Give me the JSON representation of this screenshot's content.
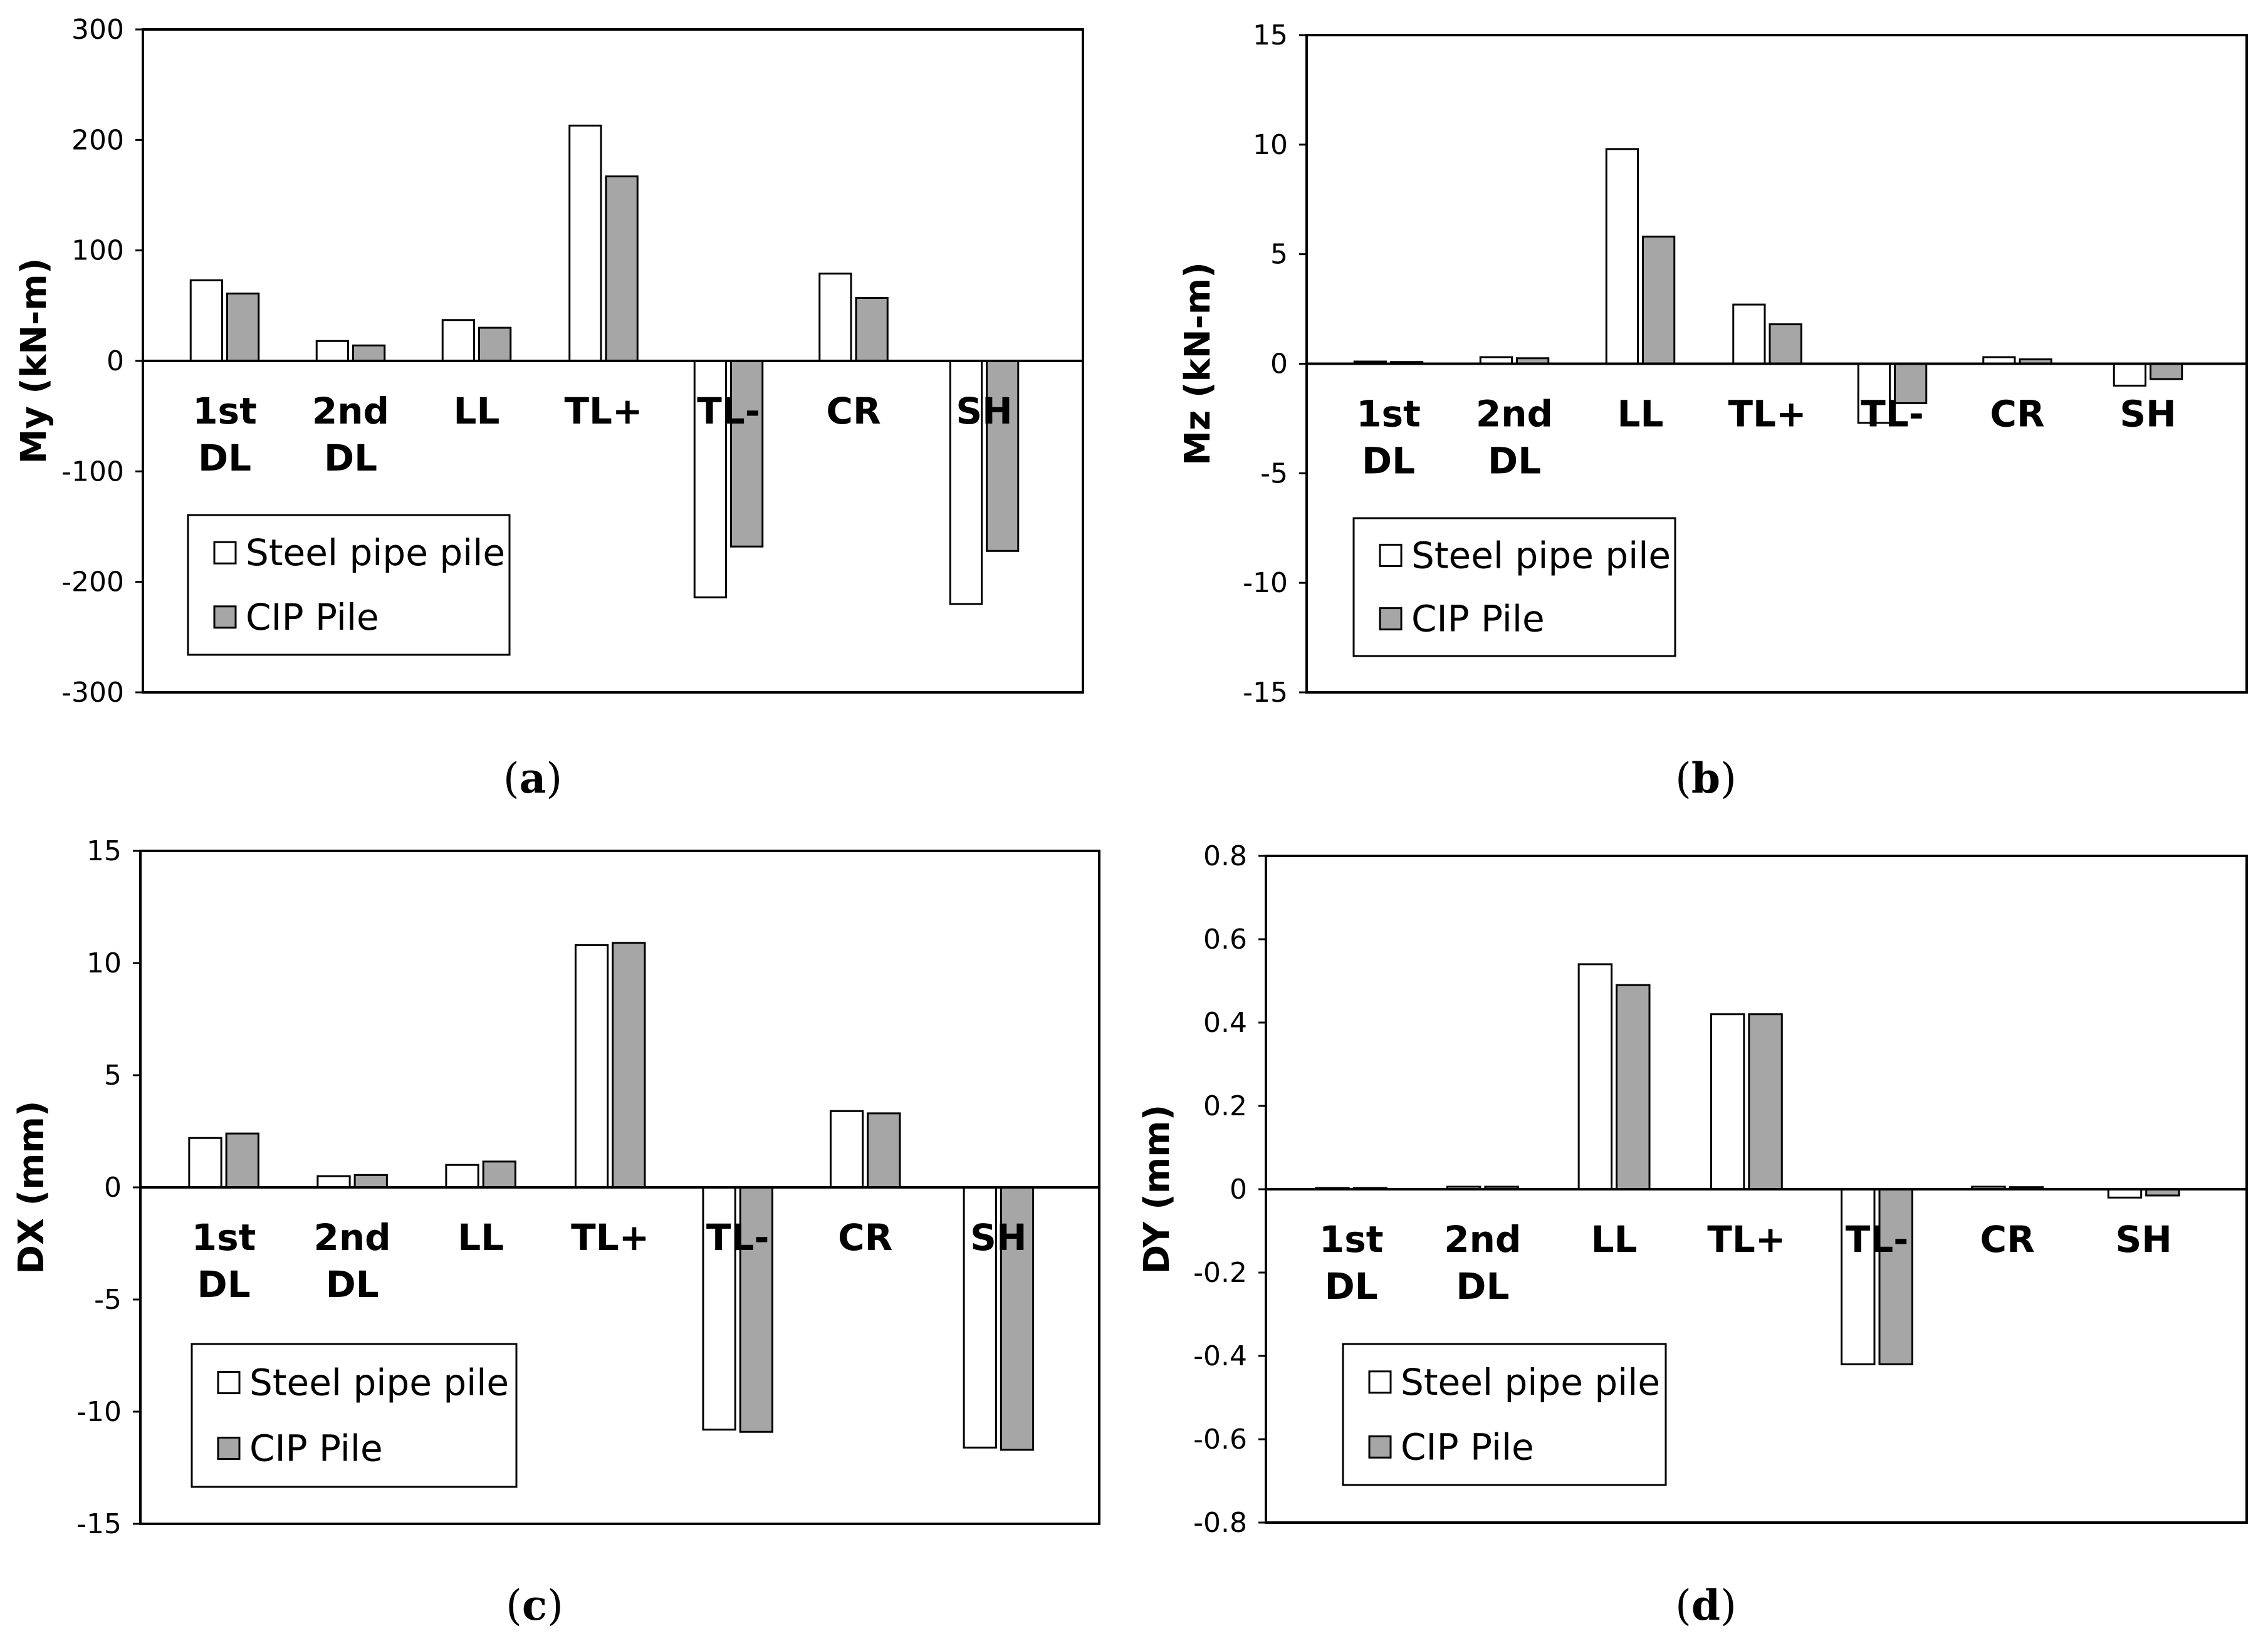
{
  "legend": {
    "series_1": "Steel pipe pile",
    "series_2": "CIP Pile"
  },
  "colors": {
    "series_1": "#ffffff",
    "series_2": "#a6a6a6",
    "stroke": "#000000"
  },
  "chart_data": [
    {
      "type": "bar",
      "caption": {
        "open": "(",
        "letter": "a",
        "close": ")"
      },
      "ylabel": "My (kN-m)",
      "xlabel": "",
      "ylim": [
        -300,
        300
      ],
      "yticks": [
        "300",
        "200",
        "100",
        "0",
        "-100",
        "-200",
        "-300"
      ],
      "ytick_values": [
        300,
        200,
        100,
        0,
        -100,
        -200,
        -300
      ],
      "categories": [
        {
          "line1": "1st",
          "line2": "DL"
        },
        {
          "line1": "2nd",
          "line2": "DL"
        },
        {
          "line1": "LL",
          "line2": ""
        },
        {
          "line1": "TL+",
          "line2": ""
        },
        {
          "line1": "TL-",
          "line2": ""
        },
        {
          "line1": "CR",
          "line2": ""
        },
        {
          "line1": "SH",
          "line2": ""
        }
      ],
      "series": [
        {
          "name": "Steel pipe pile",
          "values": [
            73,
            18,
            37,
            213,
            -214,
            79,
            -220
          ]
        },
        {
          "name": "CIP Pile",
          "values": [
            61,
            14,
            30,
            167,
            -168,
            57,
            -172
          ]
        }
      ]
    },
    {
      "type": "bar",
      "caption": {
        "open": "(",
        "letter": "b",
        "close": ")"
      },
      "ylabel": "Mz (kN-m)",
      "xlabel": "",
      "ylim": [
        -15,
        15
      ],
      "yticks": [
        "15",
        "10",
        "5",
        "0",
        "-5",
        "-10",
        "-15"
      ],
      "ytick_values": [
        15,
        10,
        5,
        0,
        -5,
        -10,
        -15
      ],
      "categories": [
        {
          "line1": "1st",
          "line2": "DL"
        },
        {
          "line1": "2nd",
          "line2": "DL"
        },
        {
          "line1": "LL",
          "line2": ""
        },
        {
          "line1": "TL+",
          "line2": ""
        },
        {
          "line1": "TL-",
          "line2": ""
        },
        {
          "line1": "CR",
          "line2": ""
        },
        {
          "line1": "SH",
          "line2": ""
        }
      ],
      "series": [
        {
          "name": "Steel pipe pile",
          "values": [
            0.1,
            0.3,
            9.8,
            2.7,
            -2.7,
            0.3,
            -1.0
          ]
        },
        {
          "name": "CIP Pile",
          "values": [
            0.08,
            0.25,
            5.8,
            1.8,
            -1.8,
            0.2,
            -0.7
          ]
        }
      ]
    },
    {
      "type": "bar",
      "caption": {
        "open": "(",
        "letter": "c",
        "close": ")"
      },
      "ylabel": "DX (mm)",
      "xlabel": "",
      "ylim": [
        -15,
        15
      ],
      "yticks": [
        "15",
        "10",
        "5",
        "0",
        "-5",
        "-10",
        "-15"
      ],
      "ytick_values": [
        15,
        10,
        5,
        0,
        -5,
        -10,
        -15
      ],
      "categories": [
        {
          "line1": "1st",
          "line2": "DL"
        },
        {
          "line1": "2nd",
          "line2": "DL"
        },
        {
          "line1": "LL",
          "line2": ""
        },
        {
          "line1": "TL+",
          "line2": ""
        },
        {
          "line1": "TL-",
          "line2": ""
        },
        {
          "line1": "CR",
          "line2": ""
        },
        {
          "line1": "SH",
          "line2": ""
        }
      ],
      "series": [
        {
          "name": "Steel pipe pile",
          "values": [
            2.2,
            0.5,
            1.0,
            10.8,
            -10.8,
            3.4,
            -11.6
          ]
        },
        {
          "name": "CIP Pile",
          "values": [
            2.4,
            0.55,
            1.15,
            10.9,
            -10.9,
            3.3,
            -11.7
          ]
        }
      ]
    },
    {
      "type": "bar",
      "caption": {
        "open": "(",
        "letter": "d",
        "close": ")"
      },
      "ylabel": "DY (mm)",
      "xlabel": "",
      "ylim": [
        -0.8,
        0.8
      ],
      "yticks": [
        "0.8",
        "0.6",
        "0.4",
        "0.2",
        "0",
        "-0.2",
        "-0.4",
        "-0.6",
        "-0.8"
      ],
      "ytick_values": [
        0.8,
        0.6,
        0.4,
        0.2,
        0,
        -0.2,
        -0.4,
        -0.6,
        -0.8
      ],
      "categories": [
        {
          "line1": "1st",
          "line2": "DL"
        },
        {
          "line1": "2nd",
          "line2": "DL"
        },
        {
          "line1": "LL",
          "line2": ""
        },
        {
          "line1": "TL+",
          "line2": ""
        },
        {
          "line1": "TL-",
          "line2": ""
        },
        {
          "line1": "CR",
          "line2": ""
        },
        {
          "line1": "SH",
          "line2": ""
        }
      ],
      "series": [
        {
          "name": "Steel pipe pile",
          "values": [
            0.003,
            0.006,
            0.54,
            0.42,
            -0.42,
            0.006,
            -0.02
          ]
        },
        {
          "name": "CIP Pile",
          "values": [
            0.003,
            0.006,
            0.49,
            0.42,
            -0.42,
            0.005,
            -0.015
          ]
        }
      ]
    }
  ]
}
